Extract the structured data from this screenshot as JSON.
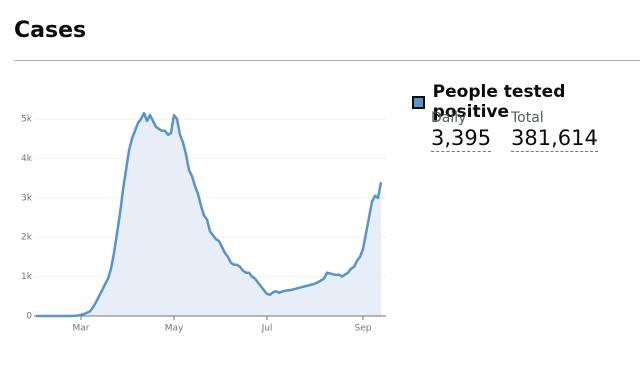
{
  "header": {
    "title": "Cases"
  },
  "chart_data": {
    "type": "line",
    "categories": [
      null,
      null,
      null,
      null,
      null,
      null,
      null,
      null,
      null,
      null,
      null,
      null,
      null,
      null,
      null,
      "Mar",
      null,
      null,
      null,
      null,
      null,
      null,
      null,
      null,
      null,
      null,
      null,
      null,
      null,
      null,
      null,
      null,
      null,
      null,
      null,
      null,
      null,
      null,
      null,
      null,
      null,
      null,
      null,
      null,
      null,
      null,
      "May",
      null,
      null,
      null,
      null,
      null,
      null,
      null,
      null,
      null,
      null,
      null,
      null,
      null,
      null,
      null,
      null,
      null,
      null,
      null,
      null,
      null,
      null,
      null,
      null,
      null,
      null,
      null,
      null,
      null,
      null,
      "Jul",
      null,
      null,
      null,
      null,
      null,
      null,
      null,
      null,
      null,
      null,
      null,
      null,
      null,
      null,
      null,
      null,
      null,
      null,
      null,
      null,
      null,
      null,
      null,
      null,
      null,
      null,
      null,
      null,
      null,
      null,
      null,
      "Sep",
      null,
      null,
      null,
      null,
      null,
      null
    ],
    "series": [
      {
        "name": "People tested positive",
        "color": "#5694ca",
        "fill": "#e8eef7",
        "values": [
          0,
          0,
          0,
          0,
          0,
          0,
          0,
          0,
          0,
          0,
          0,
          0,
          2,
          5,
          10,
          30,
          50,
          80,
          120,
          220,
          350,
          500,
          650,
          800,
          950,
          1200,
          1600,
          2100,
          2600,
          3200,
          3700,
          4200,
          4500,
          4700,
          4900,
          5000,
          5150,
          4950,
          5100,
          4950,
          4800,
          4750,
          4700,
          4700,
          4600,
          4650,
          5100,
          5000,
          4600,
          4400,
          4100,
          3700,
          3550,
          3300,
          3100,
          2800,
          2550,
          2450,
          2150,
          2050,
          1950,
          1900,
          1750,
          1600,
          1500,
          1350,
          1300,
          1300,
          1250,
          1150,
          1100,
          1100,
          1000,
          950,
          850,
          750,
          650,
          560,
          540,
          600,
          630,
          590,
          620,
          640,
          650,
          660,
          680,
          700,
          720,
          740,
          760,
          780,
          800,
          820,
          860,
          900,
          950,
          1100,
          1080,
          1060,
          1040,
          1050,
          1000,
          1050,
          1100,
          1200,
          1250,
          1400,
          1500,
          1700,
          2100,
          2500,
          2900,
          3050,
          3000,
          3395
        ]
      }
    ],
    "ylim": [
      0,
      5000
    ],
    "yticks": [
      0,
      {
        "value": 1000,
        "label": "1k"
      },
      {
        "value": 2000,
        "label": "2k"
      },
      {
        "value": 3000,
        "label": "3k"
      },
      {
        "value": 4000,
        "label": "4k"
      },
      {
        "value": 5000,
        "label": "5k"
      }
    ],
    "grid": true
  },
  "summary": {
    "daily_label": "Daily",
    "daily_value": "3,395",
    "total_label": "Total",
    "total_value": "381,614"
  }
}
